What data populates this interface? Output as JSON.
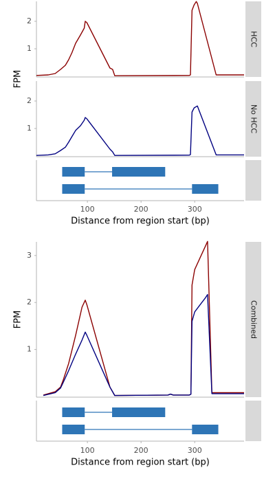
{
  "chart_data": [
    {
      "type": "line",
      "ylabel": "FPM",
      "xlabel": "Distance from region start (bp)",
      "xlim": [
        5,
        392
      ],
      "xticks": [
        100,
        200,
        300
      ],
      "panels": [
        {
          "strip": "HCC",
          "ylim": [
            -0.025,
            2.725
          ],
          "yticks": [
            1,
            2
          ],
          "series": [
            {
              "color": "#8b0000",
              "x": [
                5,
                27,
                40,
                50,
                59,
                65,
                71,
                78,
                87,
                94,
                96,
                99,
                142,
                147,
                151,
                290,
                292,
                295,
                299,
                303,
                305,
                340,
                392
              ],
              "values": [
                0.03,
                0.05,
                0.1,
                0.25,
                0.4,
                0.6,
                0.85,
                1.2,
                1.5,
                1.75,
                2.0,
                1.95,
                0.3,
                0.25,
                0.02,
                0.03,
                0.05,
                2.4,
                2.6,
                2.72,
                2.65,
                0.05,
                0.05
              ]
            }
          ]
        },
        {
          "strip": "No HCC",
          "ylim": [
            -0.025,
            2.725
          ],
          "yticks": [
            1,
            2
          ],
          "series": [
            {
              "color": "#000080",
              "x": [
                5,
                27,
                40,
                50,
                59,
                65,
                71,
                78,
                87,
                94,
                96,
                99,
                142,
                147,
                151,
                290,
                292,
                295,
                299,
                305,
                340,
                392
              ],
              "values": [
                0.02,
                0.04,
                0.08,
                0.2,
                0.32,
                0.5,
                0.7,
                0.93,
                1.1,
                1.3,
                1.4,
                1.35,
                0.25,
                0.15,
                0.02,
                0.03,
                0.05,
                1.6,
                1.75,
                1.82,
                0.04,
                0.04
              ]
            }
          ]
        }
      ],
      "gene_model": [
        {
          "exons": [
            [
              53,
              95
            ],
            [
              146,
              245
            ]
          ]
        },
        {
          "exons": [
            [
              53,
              95
            ],
            [
              295,
              344
            ]
          ]
        }
      ]
    },
    {
      "type": "line",
      "ylabel": "FPM",
      "xlabel": "Distance from region start (bp)",
      "xlim": [
        5,
        392
      ],
      "xticks": [
        100,
        200,
        300
      ],
      "panels": [
        {
          "strip": "Combined",
          "ylim": [
            -0.015,
            3.29
          ],
          "yticks": [
            1,
            2,
            3
          ],
          "series": [
            {
              "color": "#8b0000",
              "x": [
                18,
                40,
                50,
                55,
                65,
                78,
                90,
                96,
                99,
                142,
                147,
                151,
                250,
                255,
                260,
                290,
                293,
                295,
                300,
                310,
                320,
                324,
                332,
                392
              ],
              "values": [
                0.03,
                0.1,
                0.2,
                0.35,
                0.7,
                1.3,
                1.9,
                2.05,
                1.95,
                0.2,
                0.1,
                0.02,
                0.03,
                0.05,
                0.03,
                0.03,
                0.05,
                2.37,
                2.7,
                2.95,
                3.2,
                3.3,
                0.08,
                0.08
              ]
            },
            {
              "color": "#000080",
              "x": [
                18,
                40,
                50,
                55,
                65,
                78,
                90,
                96,
                99,
                142,
                147,
                151,
                250,
                255,
                260,
                290,
                293,
                295,
                300,
                310,
                320,
                324,
                332,
                392
              ],
              "values": [
                0.02,
                0.08,
                0.18,
                0.3,
                0.55,
                0.9,
                1.2,
                1.37,
                1.3,
                0.2,
                0.1,
                0.02,
                0.03,
                0.05,
                0.03,
                0.03,
                0.05,
                1.6,
                1.8,
                1.95,
                2.1,
                2.17,
                0.06,
                0.06
              ]
            }
          ]
        }
      ],
      "gene_model": [
        {
          "exons": [
            [
              53,
              95
            ],
            [
              146,
              245
            ]
          ]
        },
        {
          "exons": [
            [
              53,
              95
            ],
            [
              295,
              344
            ]
          ]
        }
      ]
    }
  ]
}
